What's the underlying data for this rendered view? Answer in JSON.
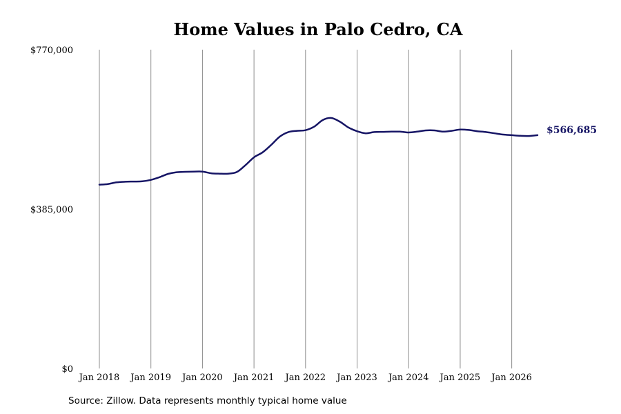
{
  "title": "Home Values in Palo Cedro, CA",
  "source_note": "Source: Zillow. Data represents monthly typical home value",
  "colors": {
    "line": "#161565",
    "grid": "#8c8c8c",
    "text": "#000000",
    "background": "#ffffff"
  },
  "chart_data": {
    "type": "line",
    "title": "Home Values in Palo Cedro, CA",
    "xlabel": "",
    "ylabel": "",
    "ylim": [
      0,
      770000
    ],
    "yticks": [
      0,
      385000,
      770000
    ],
    "ytick_labels": [
      "$0",
      "$385,000",
      "$770,000"
    ],
    "xlim": [
      "2018-01",
      "2026-07"
    ],
    "xticks": [
      "2018-01",
      "2019-01",
      "2020-01",
      "2021-01",
      "2022-01",
      "2023-01",
      "2024-01",
      "2025-01",
      "2026-01"
    ],
    "xtick_labels": [
      "Jan 2018",
      "Jan 2019",
      "Jan 2020",
      "Jan 2021",
      "Jan 2022",
      "Jan 2023",
      "Jan 2024",
      "Jan 2025",
      "Jan 2026"
    ],
    "grid": "vertical",
    "end_label": "$566,685",
    "series": [
      {
        "points": [
          [
            "2018-01",
            444000
          ],
          [
            "2018-03",
            445500
          ],
          [
            "2018-05",
            449500
          ],
          [
            "2018-07",
            451000
          ],
          [
            "2018-09",
            451500
          ],
          [
            "2018-11",
            452000
          ],
          [
            "2019-01",
            455500
          ],
          [
            "2019-03",
            462000
          ],
          [
            "2019-05",
            470000
          ],
          [
            "2019-07",
            474000
          ],
          [
            "2019-09",
            475000
          ],
          [
            "2019-11",
            475500
          ],
          [
            "2020-01",
            475500
          ],
          [
            "2020-03",
            471500
          ],
          [
            "2020-05",
            470500
          ],
          [
            "2020-07",
            470500
          ],
          [
            "2020-09",
            474500
          ],
          [
            "2020-11",
            491000
          ],
          [
            "2021-01",
            510000
          ],
          [
            "2021-03",
            522000
          ],
          [
            "2021-05",
            540000
          ],
          [
            "2021-07",
            560000
          ],
          [
            "2021-09",
            571000
          ],
          [
            "2021-11",
            574000
          ],
          [
            "2022-01",
            575500
          ],
          [
            "2022-03",
            584000
          ],
          [
            "2022-05",
            600000
          ],
          [
            "2022-07",
            605000
          ],
          [
            "2022-09",
            596000
          ],
          [
            "2022-11",
            582000
          ],
          [
            "2023-01",
            573000
          ],
          [
            "2023-03",
            568000
          ],
          [
            "2023-05",
            571000
          ],
          [
            "2023-07",
            571500
          ],
          [
            "2023-09",
            572000
          ],
          [
            "2023-11",
            572000
          ],
          [
            "2024-01",
            570000
          ],
          [
            "2024-03",
            572000
          ],
          [
            "2024-05",
            575000
          ],
          [
            "2024-07",
            575000
          ],
          [
            "2024-09",
            572000
          ],
          [
            "2024-11",
            574000
          ],
          [
            "2025-01",
            577000
          ],
          [
            "2025-03",
            576000
          ],
          [
            "2025-05",
            573000
          ],
          [
            "2025-07",
            571000
          ],
          [
            "2025-09",
            568000
          ],
          [
            "2025-11",
            565000
          ],
          [
            "2026-01",
            563500
          ],
          [
            "2026-03",
            562000
          ],
          [
            "2026-05",
            561500
          ],
          [
            "2026-07",
            563500
          ]
        ]
      }
    ]
  }
}
